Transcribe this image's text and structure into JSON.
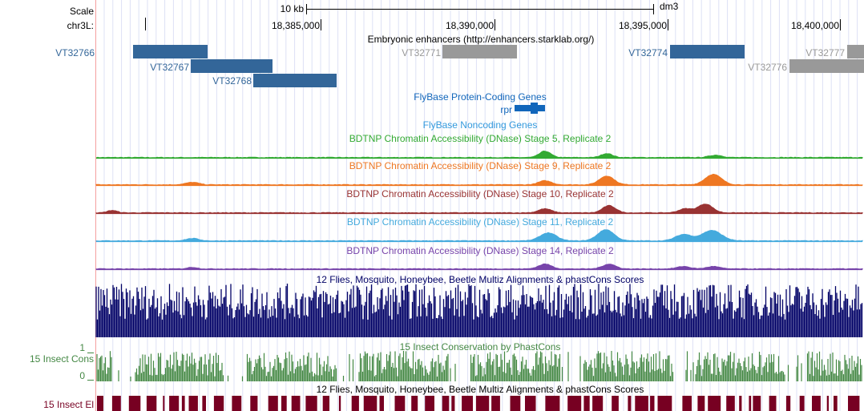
{
  "ruler": {
    "scale_label": "Scale",
    "scale_bar_label": "10 kb",
    "assembly": "dm3",
    "chrom_label": "chr3L:",
    "positions": [
      "18,385,000",
      "18,390,000",
      "18,395,000",
      "18,400,000"
    ]
  },
  "tracks": {
    "enhancers": {
      "title": "Embryonic enhancers (http://enhancers.starklab.org/)",
      "items": [
        {
          "name": "VT32766",
          "color": "#336699"
        },
        {
          "name": "VT32767",
          "color": "#336699"
        },
        {
          "name": "VT32768",
          "color": "#336699"
        },
        {
          "name": "VT32771",
          "color": "#999999"
        },
        {
          "name": "VT32774",
          "color": "#336699"
        },
        {
          "name": "VT32776",
          "color": "#999999"
        },
        {
          "name": "VT32777",
          "color": "#999999"
        }
      ]
    },
    "coding_genes": {
      "title": "FlyBase Protein-Coding Genes",
      "gene": "rpr",
      "color": "#1166bb"
    },
    "noncoding_genes": {
      "title": "FlyBase Noncoding Genes",
      "color": "#3399dd"
    },
    "dnase": [
      {
        "title": "BDTNP Chromatin Accessibility (DNase) Stage 5, Replicate 2",
        "color": "#33aa33"
      },
      {
        "title": "BDTNP Chromatin Accessibility (DNase) Stage 9, Replicate 2",
        "color": "#ee7722"
      },
      {
        "title": "BDTNP Chromatin Accessibility (DNase) Stage 10, Replicate 2",
        "color": "#993333"
      },
      {
        "title": "BDTNP Chromatin Accessibility (DNase) Stage 11, Replicate 2",
        "color": "#44aadd"
      },
      {
        "title": "BDTNP Chromatin Accessibility (DNase) Stage 14, Replicate 2",
        "color": "#7744aa"
      }
    ],
    "multiz": {
      "title": "12 Flies, Mosquito, Honeybee, Beetle Multiz Alignments & phastCons Scores",
      "color": "#000066"
    },
    "phastcons": {
      "title": "15 Insect Conservation by PhastCons",
      "side_label": "15 Insect Cons",
      "axis_max": "1",
      "axis_min": "0",
      "color": "#448844"
    },
    "elements": {
      "title": "12 Flies, Mosquito, Honeybee, Beetle Multiz Alignments & phastCons Scores",
      "side_label": "15 Insect El",
      "color": "#770022"
    }
  }
}
